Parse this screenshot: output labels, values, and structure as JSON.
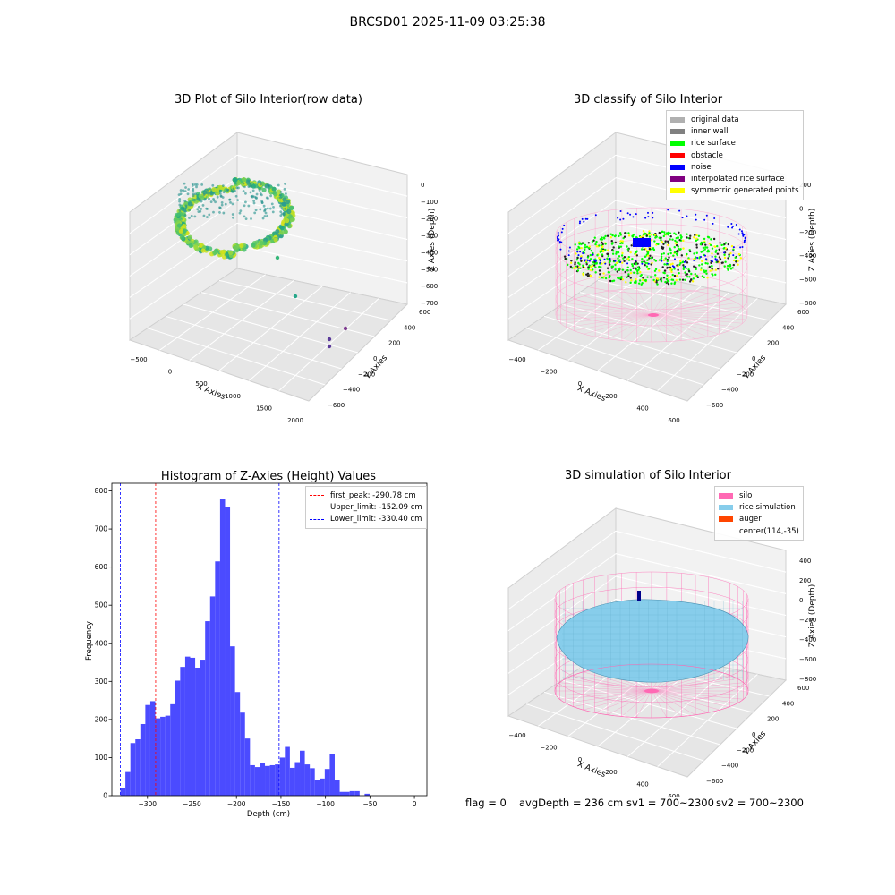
{
  "suptitle": "BRCSD01 2025-11-09 03:25:38",
  "footer": {
    "flag": "flag = 0",
    "avg_depth": "avgDepth = 236 cm",
    "sv1": "sv1 = 700~2300",
    "sv2": "sv2 = 700~2300"
  },
  "colors": {
    "histogram_bar": "#4b4bff",
    "first_peak": "#ff0000",
    "limit": "#0000ff",
    "silo": "#ff69b4",
    "rice_simulation": "#87cdeb",
    "auger": "#ff4500",
    "rice_surface": "#00ff00",
    "noise": "#0000ff",
    "obstacle": "#ff0000"
  },
  "panels": {
    "raw": {
      "title": "3D Plot of Silo Interior(row data)",
      "xlabel": "X Axies",
      "ylabel": "Y Axies",
      "zlabel": "Z Axies (Depth)",
      "x_ticks": [
        "−500",
        "0",
        "500",
        "1000",
        "1500",
        "2000"
      ],
      "y_ticks": [
        "−600",
        "−400",
        "−200",
        "0",
        "200",
        "400",
        "600"
      ],
      "z_ticks": [
        "0",
        "−100",
        "−200",
        "−300",
        "−400",
        "−500",
        "−600",
        "−700"
      ]
    },
    "classify": {
      "title": "3D classify of Silo Interior",
      "xlabel": "X Axies",
      "ylabel": "Y Axies",
      "zlabel": "Z Axies (Depth)",
      "x_ticks": [
        "−400",
        "−200",
        "0",
        "200",
        "400",
        "600"
      ],
      "y_ticks": [
        "−600",
        "−400",
        "−200",
        "0",
        "200",
        "400",
        "600"
      ],
      "z_ticks": [
        "200",
        "0",
        "−200",
        "−400",
        "−600",
        "−800"
      ],
      "legend": [
        {
          "label": "original data",
          "color": "#b0b0b0"
        },
        {
          "label": "inner wall",
          "color": "#808080"
        },
        {
          "label": "rice surface",
          "color": "#00ff00"
        },
        {
          "label": "obstacle",
          "color": "#ff0000"
        },
        {
          "label": "noise",
          "color": "#0000ff"
        },
        {
          "label": "interpolated rice surface",
          "color": "#800080"
        },
        {
          "label": "symmetric generated points",
          "color": "#ffff00"
        }
      ]
    },
    "simulation": {
      "title": "3D simulation of Silo Interior",
      "xlabel": "X Axies",
      "ylabel": "Y Axies",
      "zlabel": "Z Axies (Depth)",
      "x_ticks": [
        "−400",
        "−200",
        "0",
        "200",
        "400",
        "600"
      ],
      "y_ticks": [
        "−600",
        "−400",
        "−200",
        "0",
        "200",
        "400",
        "600"
      ],
      "z_ticks": [
        "400",
        "200",
        "0",
        "−200",
        "−400",
        "−600",
        "−800"
      ],
      "legend": [
        {
          "label": "silo",
          "color": "#ff69b4"
        },
        {
          "label": "rice simulation",
          "color": "#87cdeb"
        },
        {
          "label": "auger",
          "color": "#ff4500"
        },
        {
          "label": "center(114,-35)",
          "color": ""
        }
      ]
    }
  },
  "chart_data": [
    {
      "type": "scatter",
      "title": "3D Plot of Silo Interior(row data)",
      "xlabel": "X Axies",
      "ylabel": "Y Axies",
      "zlabel": "Z Axies (Depth)",
      "xlim": [
        -600,
        2100
      ],
      "ylim": [
        -650,
        650
      ],
      "zlim": [
        -700,
        0
      ]
    },
    {
      "type": "scatter",
      "title": "3D classify of Silo Interior",
      "xlabel": "X Axies",
      "ylabel": "Y Axies",
      "zlabel": "Z Axies (Depth)",
      "xlim": [
        -500,
        700
      ],
      "ylim": [
        -650,
        650
      ],
      "zlim": [
        -900,
        300
      ],
      "legend_placement": "top-right"
    },
    {
      "type": "bar",
      "title": "Histogram of Z-Axies (Height) Values",
      "xlabel": "Depth (cm)",
      "ylabel": "Frequency",
      "xlim": [
        -340,
        14
      ],
      "ylim": [
        0,
        820
      ],
      "x_ticks": [
        -300,
        -250,
        -200,
        -150,
        -100,
        -50,
        0
      ],
      "x_tick_labels": [
        "−300",
        "−250",
        "−200",
        "−150",
        "−100",
        "−50",
        "0"
      ],
      "y_ticks": [
        0,
        100,
        200,
        300,
        400,
        500,
        600,
        700,
        800
      ],
      "bin_start": -330.4,
      "bin_width": 5.6,
      "values": [
        20,
        62,
        138,
        148,
        188,
        238,
        248,
        203,
        207,
        210,
        240,
        302,
        338,
        365,
        362,
        336,
        357,
        458,
        523,
        615,
        780,
        758,
        392,
        272,
        218,
        150,
        80,
        75,
        85,
        78,
        80,
        82,
        100,
        128,
        73,
        88,
        118,
        82,
        72,
        40,
        45,
        70,
        110,
        42,
        10,
        10,
        12,
        12,
        0,
        5
      ],
      "vlines": [
        {
          "label": "first_peak: -290.78 cm",
          "x": -290.78,
          "color": "#ff0000"
        },
        {
          "label": "Upper_limit: -152.09 cm",
          "x": -152.09,
          "color": "#0000ff"
        },
        {
          "label": "Lower_limit: -330.40 cm",
          "x": -330.4,
          "color": "#0000ff"
        }
      ],
      "legend_placement": "top-right"
    },
    {
      "type": "scatter",
      "title": "3D simulation of Silo Interior",
      "xlabel": "X Axies",
      "ylabel": "Y Axies",
      "zlabel": "Z Axies (Depth)",
      "xlim": [
        -500,
        700
      ],
      "ylim": [
        -650,
        650
      ],
      "zlim": [
        -900,
        500
      ],
      "legend_placement": "top-right"
    }
  ]
}
